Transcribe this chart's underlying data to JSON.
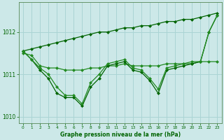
{
  "x": [
    0,
    1,
    2,
    3,
    4,
    5,
    6,
    7,
    8,
    9,
    10,
    11,
    12,
    13,
    14,
    15,
    16,
    17,
    18,
    19,
    20,
    21,
    22,
    23
  ],
  "line_straight": [
    1011.55,
    1011.6,
    1011.65,
    1011.7,
    1011.75,
    1011.8,
    1011.85,
    1011.9,
    1011.95,
    1012.0,
    1012.0,
    1012.05,
    1012.1,
    1012.1,
    1012.15,
    1012.15,
    1012.2,
    1012.25,
    1012.25,
    1012.3,
    1012.3,
    1012.35,
    1012.4,
    1012.45
  ],
  "line_flat": [
    1011.5,
    1011.45,
    1011.2,
    1011.15,
    1011.15,
    1011.1,
    1011.1,
    1011.1,
    1011.15,
    1011.15,
    1011.2,
    1011.2,
    1011.25,
    1011.2,
    1011.2,
    1011.2,
    1011.2,
    1011.25,
    1011.25,
    1011.25,
    1011.25,
    1011.3,
    1011.3,
    1011.3
  ],
  "line_wavy1": [
    1011.55,
    1011.35,
    1011.1,
    1010.9,
    1010.55,
    1010.45,
    1010.45,
    1010.25,
    1010.7,
    1010.9,
    1011.2,
    1011.25,
    1011.3,
    1011.1,
    1011.05,
    1010.85,
    1010.55,
    1011.1,
    1011.15,
    1011.2,
    1011.25,
    1011.3,
    1012.0,
    1012.4
  ],
  "line_wavy2": [
    1011.55,
    1011.35,
    1011.15,
    1011.0,
    1010.7,
    1010.5,
    1010.5,
    1010.3,
    1010.8,
    1011.0,
    1011.25,
    1011.3,
    1011.35,
    1011.15,
    1011.1,
    1010.9,
    1010.65,
    1011.15,
    1011.2,
    1011.25,
    1011.3,
    1011.3,
    1012.0,
    1012.4
  ],
  "bg_color": "#cce8e8",
  "grid_color": "#aad4d4",
  "line_color1": "#006400",
  "line_color2": "#228B22",
  "xlabel": "Graphe pression niveau de la mer (hPa)",
  "ylim": [
    1009.85,
    1012.7
  ],
  "yticks": [
    1010,
    1011,
    1012
  ],
  "xlim": [
    -0.5,
    23.5
  ],
  "xticks": [
    0,
    1,
    2,
    3,
    4,
    5,
    6,
    7,
    8,
    9,
    10,
    11,
    12,
    13,
    14,
    15,
    16,
    17,
    18,
    19,
    20,
    21,
    22,
    23
  ]
}
